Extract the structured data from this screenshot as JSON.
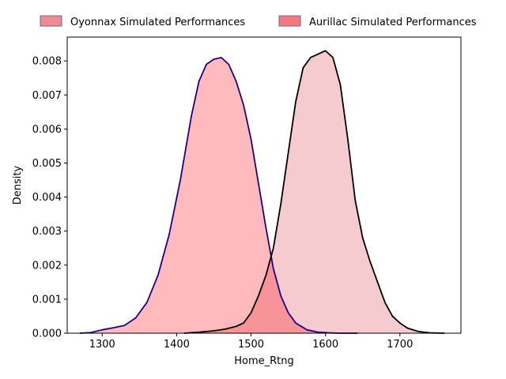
{
  "chart_data": {
    "type": "area",
    "title": "",
    "xlabel": "Home_Rtng",
    "ylabel": "Density",
    "xlim": [
      1253,
      1782
    ],
    "ylim": [
      0,
      0.0087
    ],
    "x_ticks": [
      1300,
      1400,
      1500,
      1600,
      1700
    ],
    "y_ticks": [
      0.0,
      0.001,
      0.002,
      0.003,
      0.004,
      0.005,
      0.006,
      0.007,
      0.008
    ],
    "x_tick_labels": [
      "1300",
      "1400",
      "1500",
      "1600",
      "1700"
    ],
    "y_tick_labels": [
      "0.000",
      "0.001",
      "0.002",
      "0.003",
      "0.004",
      "0.005",
      "0.006",
      "0.007",
      "0.008"
    ],
    "grid": false,
    "legend_position": "top-center-outside",
    "series": [
      {
        "name": "Oyonnax Simulated Performances",
        "fill_color": "#ffb6b9",
        "legend_color": "#f08a95",
        "line_color": "#1f0080",
        "x": [
          1270,
          1285,
          1300,
          1315,
          1330,
          1345,
          1360,
          1375,
          1390,
          1405,
          1420,
          1430,
          1440,
          1450,
          1460,
          1470,
          1480,
          1490,
          1500,
          1510,
          1520,
          1530,
          1540,
          1550,
          1560,
          1575,
          1590,
          1605,
          1620,
          1643
        ],
        "y": [
          0.0,
          2e-05,
          0.0001,
          0.00016,
          0.00023,
          0.00045,
          0.0009,
          0.0017,
          0.0029,
          0.0045,
          0.0064,
          0.0074,
          0.0079,
          0.00805,
          0.0081,
          0.0079,
          0.0074,
          0.0067,
          0.0057,
          0.0044,
          0.0031,
          0.0019,
          0.0011,
          0.0006,
          0.0003,
          0.0001,
          3e-05,
          1e-05,
          0.0,
          0.0
        ]
      },
      {
        "name": "Aurillac Simulated Performances",
        "fill_color": "#f4c2c7",
        "legend_color": "#f47a7e",
        "line_color": "#000000",
        "x": [
          1410,
          1430,
          1450,
          1465,
          1480,
          1490,
          1500,
          1510,
          1520,
          1530,
          1540,
          1550,
          1560,
          1570,
          1580,
          1590,
          1600,
          1610,
          1620,
          1630,
          1640,
          1650,
          1660,
          1670,
          1680,
          1690,
          1700,
          1710,
          1725,
          1740,
          1760
        ],
        "y": [
          0.0,
          3e-05,
          7e-05,
          0.00012,
          0.0002,
          0.0003,
          0.0006,
          0.0011,
          0.0017,
          0.0025,
          0.0038,
          0.0053,
          0.0068,
          0.0078,
          0.0081,
          0.0082,
          0.0083,
          0.0081,
          0.0073,
          0.0057,
          0.0039,
          0.0028,
          0.0021,
          0.0015,
          0.0009,
          0.0005,
          0.0003,
          0.00015,
          5e-05,
          1e-05,
          0.0
        ]
      }
    ]
  }
}
